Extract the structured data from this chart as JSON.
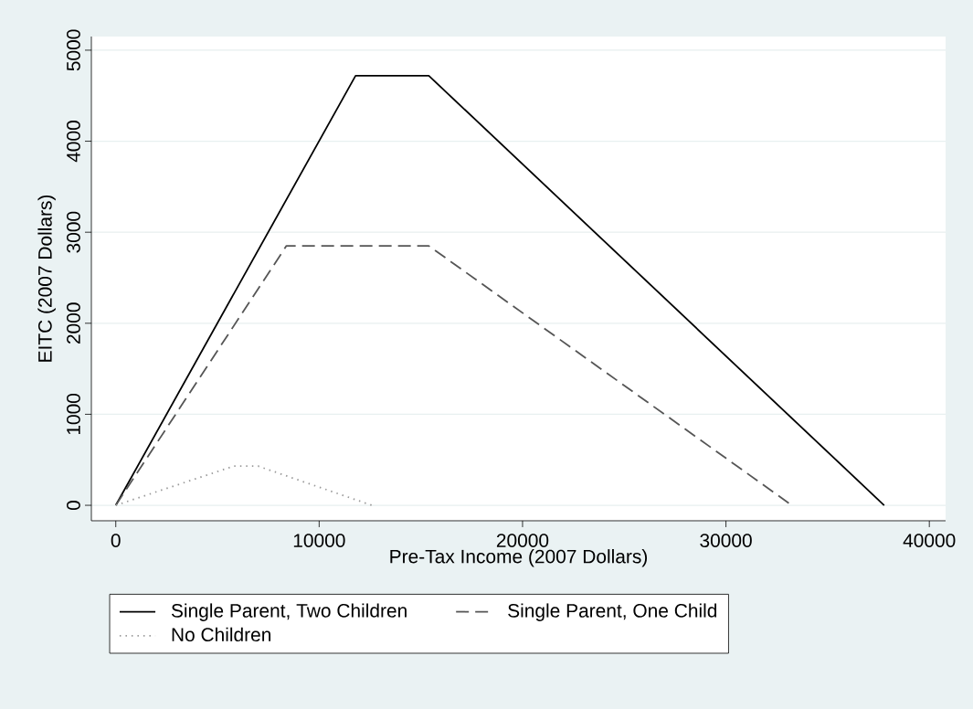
{
  "chart_data": {
    "type": "line",
    "xlabel": "Pre-Tax Income (2007 Dollars)",
    "ylabel": "EITC (2007 Dollars)",
    "xlim": [
      -1200,
      40800
    ],
    "ylim": [
      -170,
      5150
    ],
    "xticks": [
      0,
      10000,
      20000,
      30000,
      40000
    ],
    "yticks": [
      0,
      1000,
      2000,
      3000,
      4000,
      5000
    ],
    "grid": "y",
    "legend": "bottom",
    "marker": "none",
    "series": [
      {
        "name": "Single Parent, Two Children",
        "color": "#000000",
        "line_style": "solid",
        "x": [
          0,
          11790,
          15390,
          37780
        ],
        "values": [
          0,
          4720,
          4720,
          0
        ]
      },
      {
        "name": "Single Parent, One Child",
        "color": "#555555",
        "line_style": "dashed",
        "x": [
          0,
          8390,
          15390,
          33240
        ],
        "values": [
          0,
          2850,
          2850,
          0
        ]
      },
      {
        "name": "No Children",
        "color": "#999999",
        "line_style": "dotted",
        "x": [
          0,
          5800,
          7000,
          12590
        ],
        "values": [
          0,
          430,
          430,
          0
        ]
      }
    ]
  }
}
